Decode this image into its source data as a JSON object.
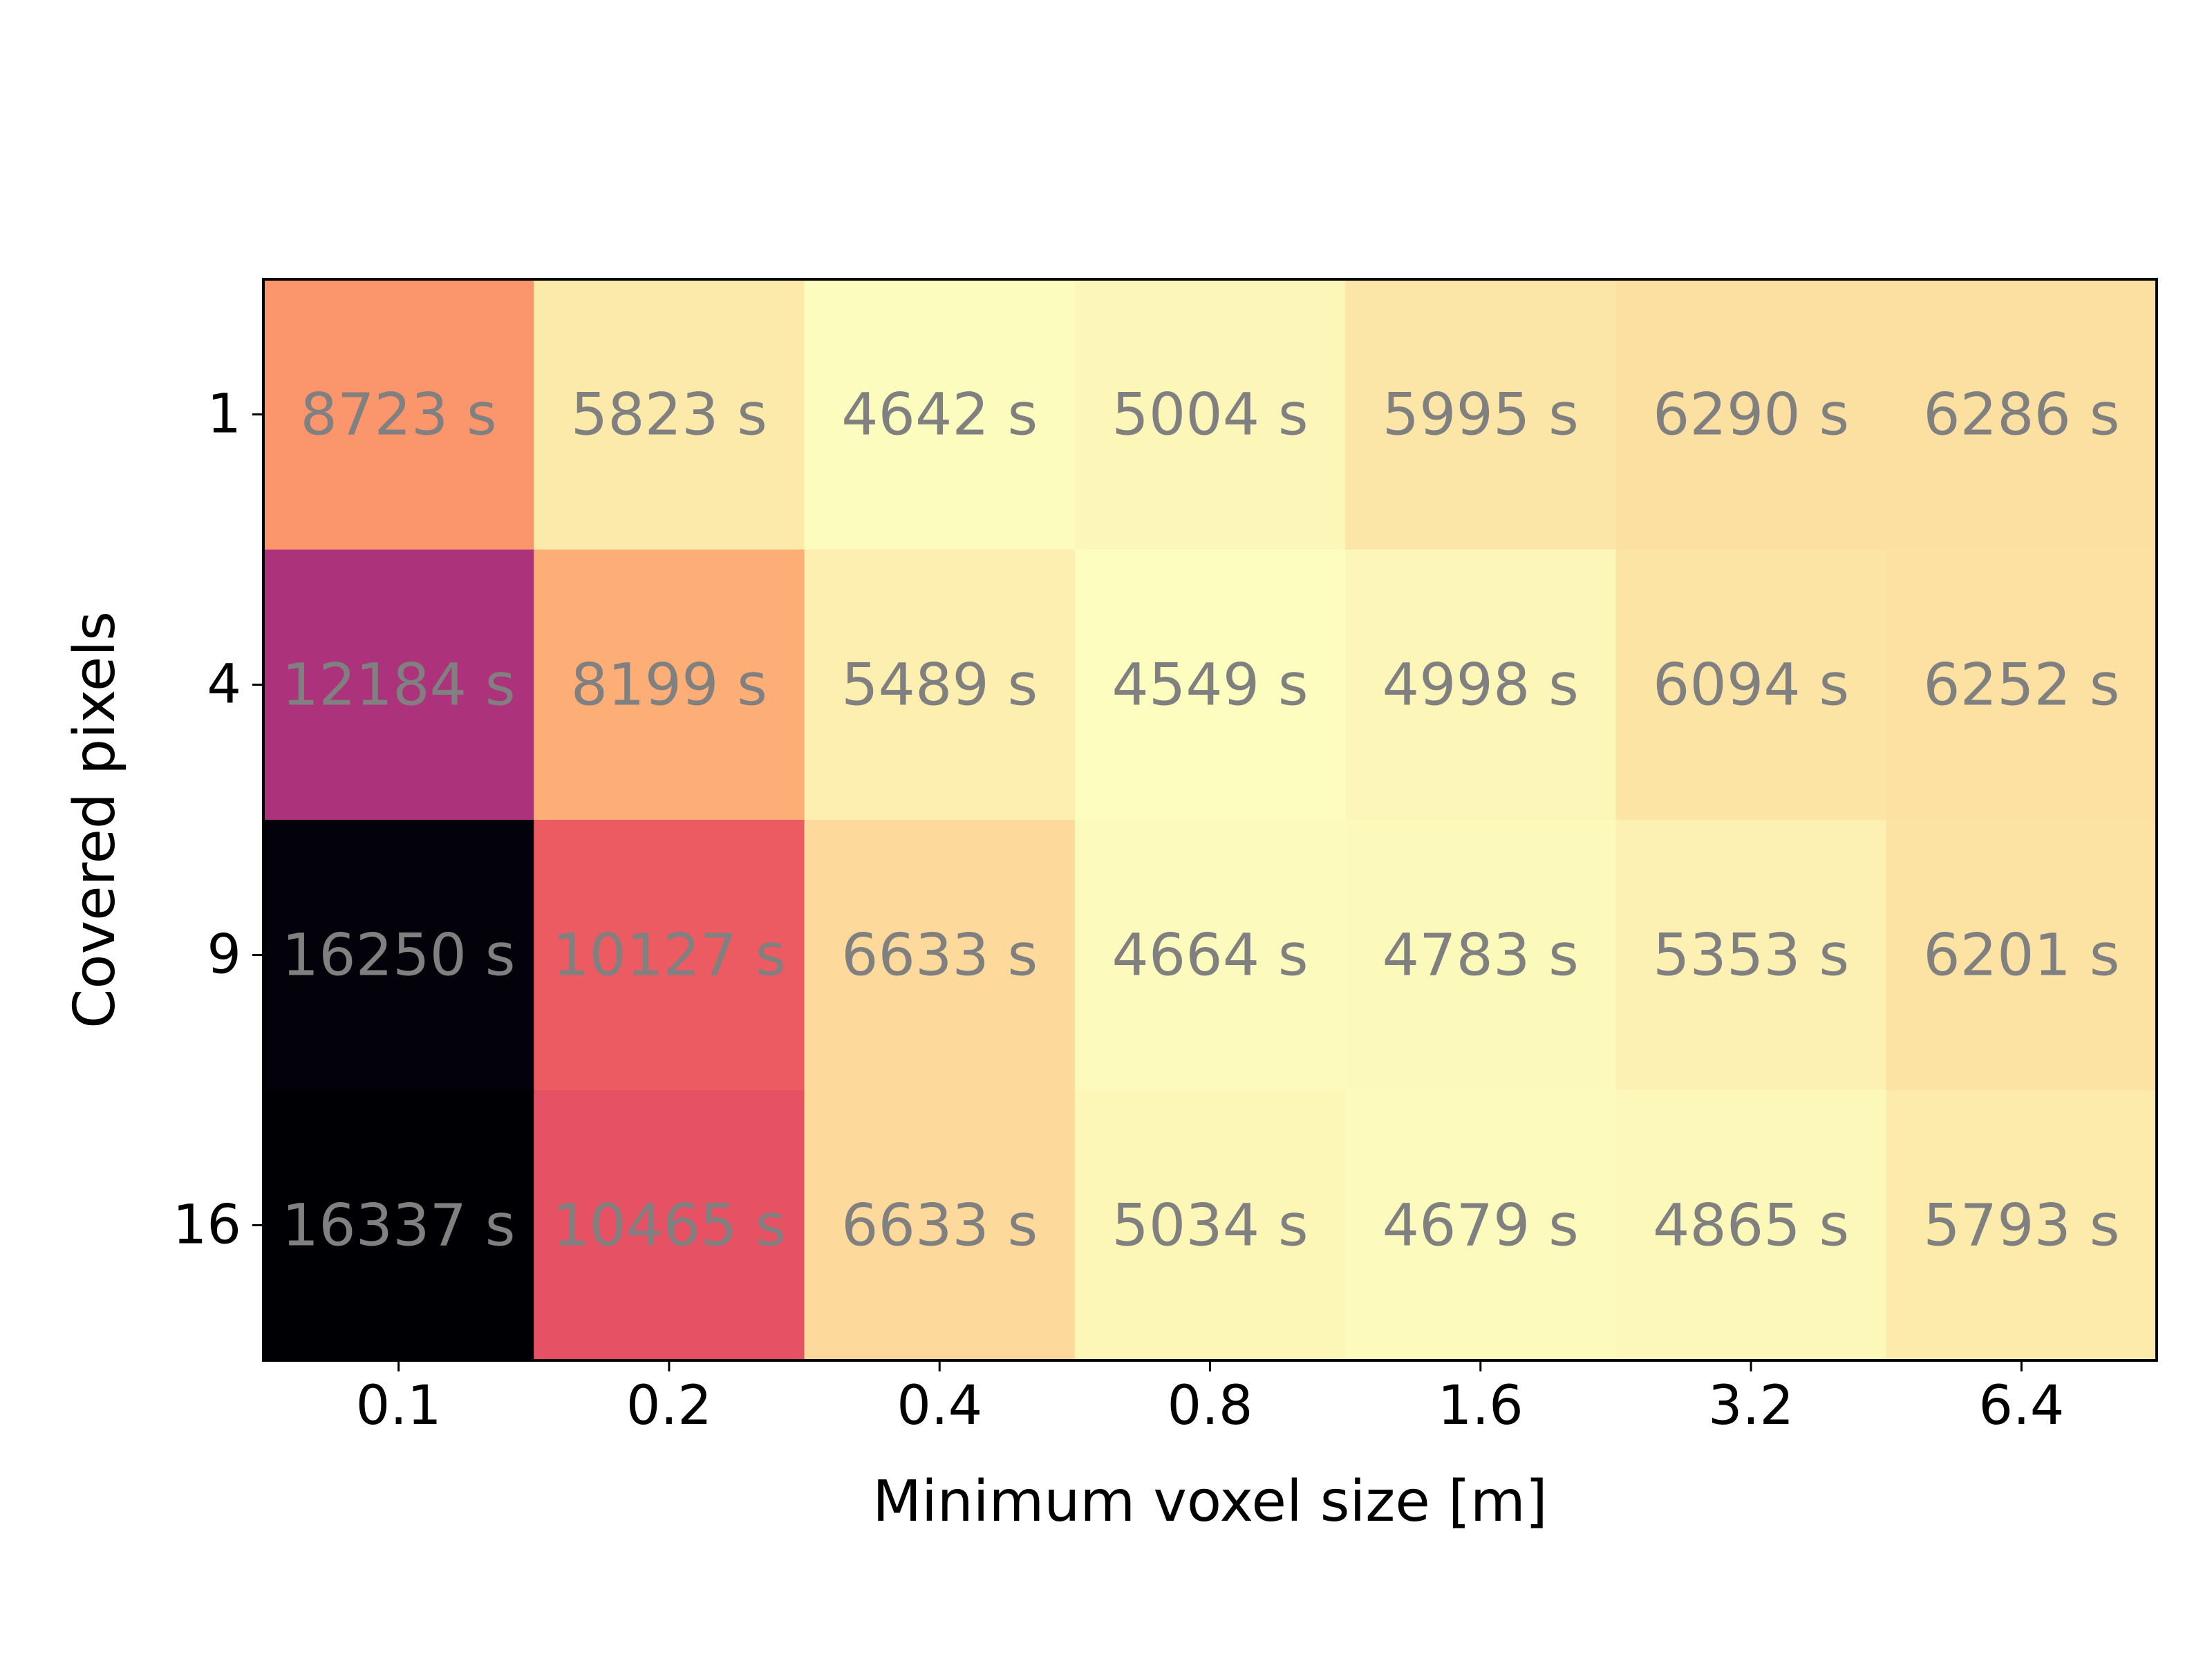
{
  "chart_data": {
    "type": "heatmap",
    "title": "",
    "xlabel": "Minimum voxel size [m]",
    "ylabel": "Covered pixels",
    "x_categories": [
      "0.1",
      "0.2",
      "0.4",
      "0.8",
      "1.6",
      "3.2",
      "6.4"
    ],
    "y_categories": [
      "1",
      "4",
      "9",
      "16"
    ],
    "unit_suffix": " s",
    "values": [
      [
        8723,
        5823,
        4642,
        5004,
        5995,
        6290,
        6286
      ],
      [
        12184,
        8199,
        5489,
        4549,
        4998,
        6094,
        6252
      ],
      [
        16250,
        10127,
        6633,
        4664,
        4783,
        5353,
        6201
      ],
      [
        16337,
        10465,
        6633,
        5034,
        4679,
        4865,
        5793
      ]
    ],
    "colormap": "magma_r",
    "color_range": [
      4549,
      16337
    ],
    "annotation_color": "#808080",
    "grid": false,
    "colorbar": false
  }
}
